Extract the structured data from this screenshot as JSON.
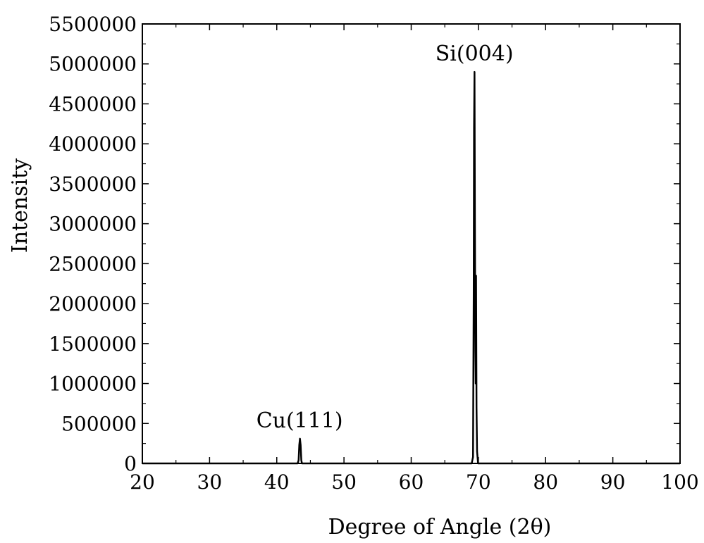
{
  "chart_data": {
    "type": "line",
    "xlabel": "Degree of Angle (2θ)",
    "ylabel": "Intensity",
    "xlim": [
      20,
      100
    ],
    "ylim": [
      0,
      5500000
    ],
    "x_ticks": [
      20,
      30,
      40,
      50,
      60,
      70,
      80,
      90,
      100
    ],
    "y_ticks": [
      0,
      500000,
      1000000,
      1500000,
      2000000,
      2500000,
      3000000,
      3500000,
      4000000,
      4500000,
      5000000,
      5500000
    ],
    "grid": false,
    "legend": "none",
    "series": [
      {
        "color": "#000000",
        "x": [
          20,
          43.1,
          43.25,
          43.35,
          43.45,
          43.55,
          43.65,
          43.75,
          69.0,
          69.2,
          69.3,
          69.35,
          69.42,
          69.48,
          69.55,
          69.6,
          69.65,
          69.72,
          69.8,
          69.95,
          100
        ],
        "y": [
          0,
          0,
          40000,
          230000,
          310000,
          230000,
          40000,
          0,
          0,
          80000,
          2100000,
          4200000,
          4900000,
          3000000,
          1400000,
          1000000,
          2350000,
          700000,
          150000,
          0,
          0
        ]
      }
    ],
    "annotations": [
      {
        "text": "Cu(111)",
        "x": 43.4,
        "y": 310000
      },
      {
        "text": "Si(004)",
        "x": 69.4,
        "y": 4900000
      }
    ]
  }
}
